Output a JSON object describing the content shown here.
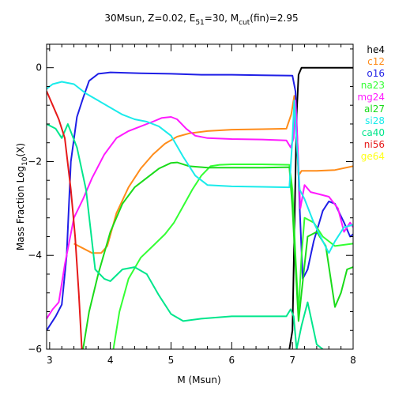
{
  "chart_data": {
    "type": "line",
    "title": {
      "main": "30Msun, Z=0.02, E",
      "e_sub": "51",
      "mid": "=30, M",
      "m_sub": "cut",
      "end": "(fin)=2.95"
    },
    "xlabel": "M (Msun)",
    "ylabel": {
      "pre": "Mass Fraction Log",
      "sub": "10",
      "post": "(X)"
    },
    "xlim": [
      2.95,
      8.0
    ],
    "ylim": [
      -6,
      0.5
    ],
    "x_ticks": [
      3,
      4,
      5,
      6,
      7,
      8
    ],
    "y_ticks": [
      0,
      -2,
      -4,
      -6
    ],
    "y_tick_labels": [
      "0",
      "−2",
      "−4",
      "−6"
    ],
    "legend_position": "right-outside",
    "series": [
      {
        "name": "he4",
        "color": "#000000",
        "points": [
          [
            6.95,
            -6
          ],
          [
            7.0,
            -5.6
          ],
          [
            7.04,
            -3.0
          ],
          [
            7.07,
            -1.0
          ],
          [
            7.1,
            -0.15
          ],
          [
            7.15,
            0
          ],
          [
            8.0,
            0
          ]
        ]
      },
      {
        "name": "c12",
        "color": "#ff8c1a",
        "points": [
          [
            3.4,
            -3.75
          ],
          [
            3.55,
            -3.85
          ],
          [
            3.7,
            -3.95
          ],
          [
            3.85,
            -3.95
          ],
          [
            3.95,
            -3.8
          ],
          [
            4.1,
            -3.1
          ],
          [
            4.3,
            -2.55
          ],
          [
            4.5,
            -2.15
          ],
          [
            4.7,
            -1.85
          ],
          [
            4.9,
            -1.62
          ],
          [
            5.1,
            -1.47
          ],
          [
            5.3,
            -1.4
          ],
          [
            5.6,
            -1.35
          ],
          [
            6.0,
            -1.32
          ],
          [
            6.5,
            -1.31
          ],
          [
            6.9,
            -1.3
          ],
          [
            6.98,
            -1.0
          ],
          [
            7.03,
            -0.6
          ],
          [
            7.06,
            -1.2
          ],
          [
            7.1,
            -2.3
          ],
          [
            7.15,
            -2.2
          ],
          [
            7.4,
            -2.2
          ],
          [
            7.7,
            -2.18
          ],
          [
            8.0,
            -2.1
          ]
        ]
      },
      {
        "name": "o16",
        "color": "#1f1fe6",
        "points": [
          [
            2.95,
            -5.6
          ],
          [
            3.1,
            -5.3
          ],
          [
            3.2,
            -5.05
          ],
          [
            3.28,
            -4.0
          ],
          [
            3.35,
            -2.0
          ],
          [
            3.45,
            -1.05
          ],
          [
            3.55,
            -0.65
          ],
          [
            3.65,
            -0.28
          ],
          [
            3.8,
            -0.13
          ],
          [
            4.0,
            -0.1
          ],
          [
            4.5,
            -0.12
          ],
          [
            5.0,
            -0.13
          ],
          [
            5.5,
            -0.15
          ],
          [
            6.0,
            -0.15
          ],
          [
            6.5,
            -0.16
          ],
          [
            7.0,
            -0.17
          ],
          [
            7.05,
            -0.5
          ],
          [
            7.08,
            -1.5
          ],
          [
            7.12,
            -3.0
          ],
          [
            7.17,
            -4.5
          ],
          [
            7.25,
            -4.3
          ],
          [
            7.35,
            -3.7
          ],
          [
            7.5,
            -3.05
          ],
          [
            7.6,
            -2.85
          ],
          [
            7.7,
            -2.9
          ],
          [
            7.85,
            -3.3
          ],
          [
            7.95,
            -3.6
          ],
          [
            8.0,
            -3.55
          ]
        ]
      },
      {
        "name": "na23",
        "color": "#33ff33",
        "points": [
          [
            4.05,
            -6
          ],
          [
            4.15,
            -5.2
          ],
          [
            4.3,
            -4.5
          ],
          [
            4.5,
            -4.05
          ],
          [
            4.7,
            -3.8
          ],
          [
            4.9,
            -3.55
          ],
          [
            5.05,
            -3.3
          ],
          [
            5.2,
            -2.95
          ],
          [
            5.35,
            -2.6
          ],
          [
            5.5,
            -2.3
          ],
          [
            5.65,
            -2.1
          ],
          [
            5.8,
            -2.07
          ],
          [
            6.0,
            -2.06
          ],
          [
            6.5,
            -2.06
          ],
          [
            6.95,
            -2.07
          ],
          [
            7.0,
            -2.6
          ],
          [
            7.05,
            -4.0
          ],
          [
            7.1,
            -5.2
          ],
          [
            7.15,
            -4.0
          ],
          [
            7.2,
            -3.2
          ],
          [
            7.35,
            -3.3
          ],
          [
            7.5,
            -3.6
          ],
          [
            7.7,
            -3.8
          ],
          [
            8.0,
            -3.75
          ]
        ]
      },
      {
        "name": "mg24",
        "color": "#ff1aff",
        "points": [
          [
            2.95,
            -5.35
          ],
          [
            3.05,
            -5.15
          ],
          [
            3.15,
            -5.0
          ],
          [
            3.25,
            -4.2
          ],
          [
            3.4,
            -3.2
          ],
          [
            3.55,
            -2.8
          ],
          [
            3.7,
            -2.35
          ],
          [
            3.9,
            -1.85
          ],
          [
            4.1,
            -1.5
          ],
          [
            4.3,
            -1.35
          ],
          [
            4.5,
            -1.25
          ],
          [
            4.7,
            -1.15
          ],
          [
            4.85,
            -1.07
          ],
          [
            5.0,
            -1.05
          ],
          [
            5.1,
            -1.1
          ],
          [
            5.25,
            -1.3
          ],
          [
            5.4,
            -1.45
          ],
          [
            5.6,
            -1.5
          ],
          [
            6.0,
            -1.52
          ],
          [
            6.5,
            -1.53
          ],
          [
            6.9,
            -1.55
          ],
          [
            6.97,
            -1.7
          ],
          [
            7.02,
            -1.5
          ],
          [
            7.05,
            -0.7
          ],
          [
            7.09,
            -1.8
          ],
          [
            7.13,
            -3.0
          ],
          [
            7.2,
            -2.5
          ],
          [
            7.3,
            -2.65
          ],
          [
            7.45,
            -2.7
          ],
          [
            7.6,
            -2.75
          ],
          [
            7.75,
            -3.0
          ],
          [
            7.85,
            -3.5
          ],
          [
            7.95,
            -3.3
          ],
          [
            8.0,
            -3.4
          ]
        ]
      },
      {
        "name": "al27",
        "color": "#1adb1a",
        "points": [
          [
            3.55,
            -6
          ],
          [
            3.65,
            -5.2
          ],
          [
            3.8,
            -4.4
          ],
          [
            4.0,
            -3.5
          ],
          [
            4.2,
            -2.9
          ],
          [
            4.4,
            -2.55
          ],
          [
            4.6,
            -2.35
          ],
          [
            4.8,
            -2.15
          ],
          [
            5.0,
            -2.03
          ],
          [
            5.1,
            -2.02
          ],
          [
            5.3,
            -2.1
          ],
          [
            5.6,
            -2.13
          ],
          [
            6.0,
            -2.13
          ],
          [
            6.5,
            -2.13
          ],
          [
            6.95,
            -2.12
          ],
          [
            7.0,
            -3.0
          ],
          [
            7.05,
            -4.2
          ],
          [
            7.1,
            -5.4
          ],
          [
            7.15,
            -4.8
          ],
          [
            7.25,
            -3.6
          ],
          [
            7.4,
            -3.5
          ],
          [
            7.55,
            -3.8
          ],
          [
            7.7,
            -5.1
          ],
          [
            7.8,
            -4.8
          ],
          [
            7.9,
            -4.3
          ],
          [
            8.0,
            -4.25
          ]
        ]
      },
      {
        "name": "si28",
        "color": "#1aebeb",
        "points": [
          [
            2.95,
            -0.45
          ],
          [
            3.05,
            -0.35
          ],
          [
            3.2,
            -0.3
          ],
          [
            3.4,
            -0.35
          ],
          [
            3.6,
            -0.55
          ],
          [
            3.8,
            -0.7
          ],
          [
            4.0,
            -0.85
          ],
          [
            4.2,
            -1.0
          ],
          [
            4.4,
            -1.1
          ],
          [
            4.6,
            -1.15
          ],
          [
            4.8,
            -1.25
          ],
          [
            5.0,
            -1.45
          ],
          [
            5.2,
            -1.9
          ],
          [
            5.4,
            -2.3
          ],
          [
            5.6,
            -2.5
          ],
          [
            6.0,
            -2.53
          ],
          [
            6.5,
            -2.54
          ],
          [
            6.95,
            -2.55
          ],
          [
            7.0,
            -1.5
          ],
          [
            7.03,
            -0.7
          ],
          [
            7.07,
            -1.6
          ],
          [
            7.12,
            -2.6
          ],
          [
            7.2,
            -2.8
          ],
          [
            7.35,
            -3.3
          ],
          [
            7.5,
            -3.7
          ],
          [
            7.6,
            -3.95
          ],
          [
            7.7,
            -3.7
          ],
          [
            7.85,
            -3.4
          ],
          [
            8.0,
            -3.35
          ]
        ]
      },
      {
        "name": "ca40",
        "color": "#00e68c",
        "points": [
          [
            2.95,
            -1.2
          ],
          [
            3.1,
            -1.3
          ],
          [
            3.2,
            -1.5
          ],
          [
            3.3,
            -1.2
          ],
          [
            3.45,
            -1.7
          ],
          [
            3.6,
            -2.6
          ],
          [
            3.75,
            -4.3
          ],
          [
            3.9,
            -4.5
          ],
          [
            4.0,
            -4.55
          ],
          [
            4.2,
            -4.3
          ],
          [
            4.4,
            -4.25
          ],
          [
            4.6,
            -4.4
          ],
          [
            4.8,
            -4.85
          ],
          [
            5.0,
            -5.25
          ],
          [
            5.2,
            -5.4
          ],
          [
            5.5,
            -5.35
          ],
          [
            6.0,
            -5.3
          ],
          [
            6.5,
            -5.3
          ],
          [
            6.9,
            -5.3
          ],
          [
            6.97,
            -5.15
          ],
          [
            7.02,
            -5.3
          ],
          [
            7.07,
            -6
          ],
          [
            7.15,
            -5.5
          ],
          [
            7.25,
            -5.0
          ],
          [
            7.4,
            -5.9
          ],
          [
            7.5,
            -6
          ]
        ]
      },
      {
        "name": "ni56",
        "color": "#e61a1a",
        "points": [
          [
            2.95,
            -0.5
          ],
          [
            3.05,
            -0.8
          ],
          [
            3.15,
            -1.1
          ],
          [
            3.25,
            -1.5
          ],
          [
            3.35,
            -2.6
          ],
          [
            3.42,
            -3.6
          ],
          [
            3.48,
            -4.8
          ],
          [
            3.53,
            -6
          ]
        ]
      },
      {
        "name": "ge64",
        "color": "#ffff1a",
        "points": []
      }
    ]
  }
}
